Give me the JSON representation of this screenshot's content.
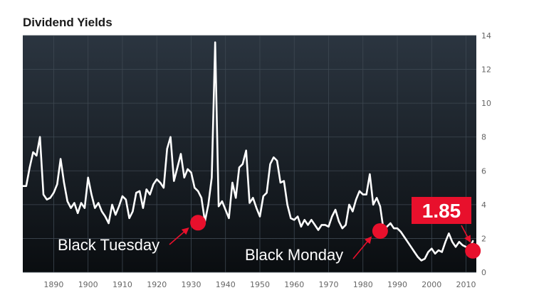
{
  "chart_data": {
    "type": "line",
    "title": "Dividend Yields",
    "xlabel": "",
    "ylabel": "",
    "xlim": [
      1881,
      2013
    ],
    "ylim": [
      0,
      14
    ],
    "x_ticks": [
      1890,
      1900,
      1910,
      1920,
      1930,
      1940,
      1950,
      1960,
      1970,
      1980,
      1990,
      2000,
      2010
    ],
    "y_ticks": [
      0,
      2,
      4,
      6,
      8,
      10,
      12,
      14
    ],
    "grid": true,
    "y_axis_side": "right",
    "colors": {
      "background_top": "#2b3540",
      "background_bottom": "#0a0d10",
      "line": "#ffffff",
      "accent": "#e8102c",
      "grid": "#3e4852"
    },
    "series": [
      {
        "points": [
          [
            1881,
            5.1
          ],
          [
            1882,
            5.1
          ],
          [
            1883,
            6.2
          ],
          [
            1884,
            7.1
          ],
          [
            1885,
            6.9
          ],
          [
            1886,
            8.0
          ],
          [
            1887,
            4.6
          ],
          [
            1888,
            4.3
          ],
          [
            1889,
            4.4
          ],
          [
            1890,
            4.7
          ],
          [
            1891,
            5.2
          ],
          [
            1892,
            6.7
          ],
          [
            1893,
            5.3
          ],
          [
            1894,
            4.2
          ],
          [
            1895,
            3.8
          ],
          [
            1896,
            4.1
          ],
          [
            1897,
            3.5
          ],
          [
            1898,
            4.1
          ],
          [
            1899,
            3.8
          ],
          [
            1900,
            5.6
          ],
          [
            1901,
            4.6
          ],
          [
            1902,
            3.8
          ],
          [
            1903,
            4.1
          ],
          [
            1904,
            3.6
          ],
          [
            1905,
            3.3
          ],
          [
            1906,
            2.9
          ],
          [
            1907,
            4.0
          ],
          [
            1908,
            3.4
          ],
          [
            1909,
            3.9
          ],
          [
            1910,
            4.5
          ],
          [
            1911,
            4.3
          ],
          [
            1912,
            3.2
          ],
          [
            1913,
            3.6
          ],
          [
            1914,
            4.7
          ],
          [
            1915,
            4.8
          ],
          [
            1916,
            3.8
          ],
          [
            1917,
            4.9
          ],
          [
            1918,
            4.6
          ],
          [
            1919,
            5.2
          ],
          [
            1920,
            5.5
          ],
          [
            1921,
            5.3
          ],
          [
            1922,
            5.0
          ],
          [
            1923,
            7.3
          ],
          [
            1924,
            8.0
          ],
          [
            1925,
            5.4
          ],
          [
            1926,
            6.2
          ],
          [
            1927,
            7.0
          ],
          [
            1928,
            5.6
          ],
          [
            1929,
            6.1
          ],
          [
            1930,
            5.9
          ],
          [
            1931,
            5.0
          ],
          [
            1932,
            4.8
          ],
          [
            1933,
            4.4
          ],
          [
            1934,
            3.0
          ],
          [
            1935,
            4.0
          ],
          [
            1936,
            5.6
          ],
          [
            1937,
            13.6
          ],
          [
            1938,
            3.9
          ],
          [
            1939,
            4.2
          ],
          [
            1940,
            3.7
          ],
          [
            1941,
            3.2
          ],
          [
            1942,
            5.3
          ],
          [
            1943,
            4.4
          ],
          [
            1944,
            6.2
          ],
          [
            1945,
            6.4
          ],
          [
            1946,
            7.2
          ],
          [
            1947,
            4.1
          ],
          [
            1948,
            4.4
          ],
          [
            1949,
            3.8
          ],
          [
            1950,
            3.3
          ],
          [
            1951,
            4.5
          ],
          [
            1952,
            4.7
          ],
          [
            1953,
            6.4
          ],
          [
            1954,
            6.8
          ],
          [
            1955,
            6.6
          ],
          [
            1956,
            5.3
          ],
          [
            1957,
            5.4
          ],
          [
            1958,
            4.0
          ],
          [
            1959,
            3.2
          ],
          [
            1960,
            3.1
          ],
          [
            1961,
            3.3
          ],
          [
            1962,
            2.7
          ],
          [
            1963,
            3.1
          ],
          [
            1964,
            2.8
          ],
          [
            1965,
            3.1
          ],
          [
            1966,
            2.8
          ],
          [
            1967,
            2.5
          ],
          [
            1968,
            2.8
          ],
          [
            1969,
            2.8
          ],
          [
            1970,
            2.7
          ],
          [
            1971,
            3.3
          ],
          [
            1972,
            3.7
          ],
          [
            1973,
            3.0
          ],
          [
            1974,
            2.6
          ],
          [
            1975,
            2.8
          ],
          [
            1976,
            4.0
          ],
          [
            1977,
            3.6
          ],
          [
            1978,
            4.3
          ],
          [
            1979,
            4.8
          ],
          [
            1980,
            4.6
          ],
          [
            1981,
            4.6
          ],
          [
            1982,
            5.8
          ],
          [
            1983,
            4.0
          ],
          [
            1984,
            4.4
          ],
          [
            1985,
            3.9
          ],
          [
            1986,
            2.5
          ],
          [
            1987,
            2.7
          ],
          [
            1988,
            2.9
          ],
          [
            1989,
            2.6
          ],
          [
            1990,
            2.6
          ],
          [
            1991,
            2.4
          ],
          [
            1992,
            2.1
          ],
          [
            1993,
            1.8
          ],
          [
            1994,
            1.5
          ],
          [
            1995,
            1.2
          ],
          [
            1996,
            0.9
          ],
          [
            1997,
            0.7
          ],
          [
            1998,
            0.8
          ],
          [
            1999,
            1.2
          ],
          [
            2000,
            1.4
          ],
          [
            2001,
            1.1
          ],
          [
            2002,
            1.3
          ],
          [
            2003,
            1.2
          ],
          [
            2004,
            1.8
          ],
          [
            2005,
            2.3
          ],
          [
            2006,
            1.8
          ],
          [
            2007,
            1.5
          ],
          [
            2008,
            1.8
          ],
          [
            2009,
            1.6
          ],
          [
            2010,
            1.5
          ],
          [
            2011,
            1.4
          ],
          [
            2012,
            1.85
          ]
        ]
      }
    ],
    "annotations": [
      {
        "label": "Black Tuesday",
        "x": 1932,
        "y": 2.93
      },
      {
        "label": "Black Monday",
        "x": 1985,
        "y": 2.44
      }
    ],
    "callout": {
      "value": "1.85",
      "x": 2012,
      "y": 1.27
    }
  }
}
